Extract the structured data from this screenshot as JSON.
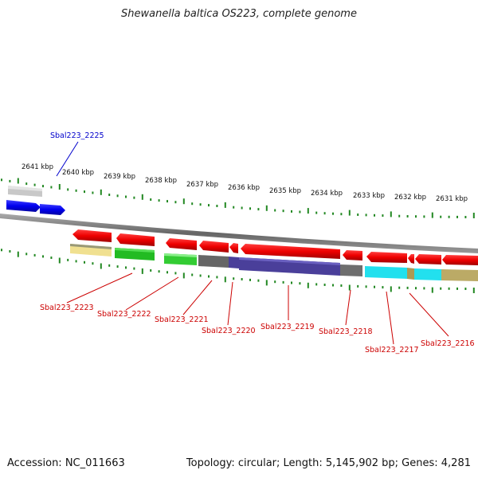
{
  "title": "Shewanella baltica OS223, complete genome",
  "accession": "Accession: NC_011663",
  "summary": "Topology: circular; Length: 5,145,902 bp; Genes: 4,281",
  "ticks": [
    "2641 kbp",
    "2640 kbp",
    "2639 kbp",
    "2638 kbp",
    "2637 kbp",
    "2636 kbp",
    "2635 kbp",
    "2634 kbp",
    "2633 kbp",
    "2632 kbp",
    "2631 kbp"
  ],
  "labels": {
    "g2225": "Sbal223_2225",
    "g2223": "Sbal223_2223",
    "g2222": "Sbal223_2222",
    "g2221": "Sbal223_2221",
    "g2220": "Sbal223_2220",
    "g2219": "Sbal223_2219",
    "g2218": "Sbal223_2218",
    "g2217": "Sbal223_2217",
    "g2216": "Sbal223_2216"
  },
  "colors": {
    "forward_gene": "#0000ee",
    "reverse_gene": "#ee0000",
    "label_red": "#cc0000",
    "label_blue": "#0000cc",
    "tick": "#228822"
  }
}
